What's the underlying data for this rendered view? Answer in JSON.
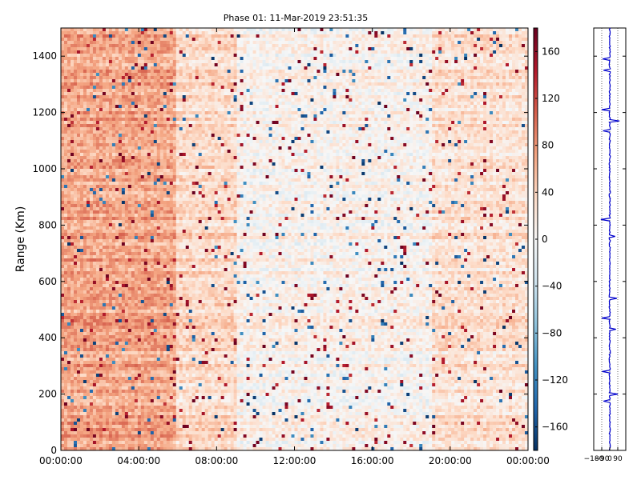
{
  "chart_data": [
    {
      "type": "heatmap",
      "title": "Phase 01: 11-Mar-2019 23:51:35",
      "ylabel": "Range (Km)",
      "xlabel": "",
      "x_ticks": [
        "00:00:00",
        "04:00:00",
        "08:00:00",
        "12:00:00",
        "16:00:00",
        "20:00:00",
        "00:00:00"
      ],
      "xlim_hours": [
        0,
        24
      ],
      "y_ticks": [
        0,
        200,
        400,
        600,
        800,
        1000,
        1200,
        1400
      ],
      "ylim": [
        0,
        1500
      ],
      "colormap": "RdBu_r",
      "colorbar": {
        "ticks": [
          -160,
          -120,
          -80,
          -40,
          0,
          40,
          80,
          120,
          160
        ],
        "range": [
          -180,
          180
        ]
      },
      "regions": [
        {
          "hours": [
            0,
            6
          ],
          "mean_phase": 70
        },
        {
          "hours": [
            6,
            9
          ],
          "mean_phase": 35
        },
        {
          "hours": [
            9,
            19
          ],
          "mean_phase": 8
        },
        {
          "hours": [
            19,
            24
          ],
          "mean_phase": 28
        }
      ]
    },
    {
      "type": "line",
      "series_color": "#0000cc",
      "x_ticks": [
        "−180",
        "−90",
        "0",
        "90"
      ],
      "xlim": [
        -180,
        180
      ],
      "ylim": [
        0,
        1500
      ],
      "profile_mean": 0,
      "spikes": [
        {
          "range": 1390,
          "value": -80
        },
        {
          "range": 1350,
          "value": -70
        },
        {
          "range": 1210,
          "value": -90
        },
        {
          "range": 1170,
          "value": 110
        },
        {
          "range": 1135,
          "value": -75
        },
        {
          "range": 820,
          "value": -100
        },
        {
          "range": 760,
          "value": 60
        },
        {
          "range": 540,
          "value": 80
        },
        {
          "range": 470,
          "value": -90
        },
        {
          "range": 430,
          "value": 70
        },
        {
          "range": 280,
          "value": -85
        },
        {
          "range": 200,
          "value": 90
        },
        {
          "range": 175,
          "value": -70
        }
      ]
    }
  ]
}
